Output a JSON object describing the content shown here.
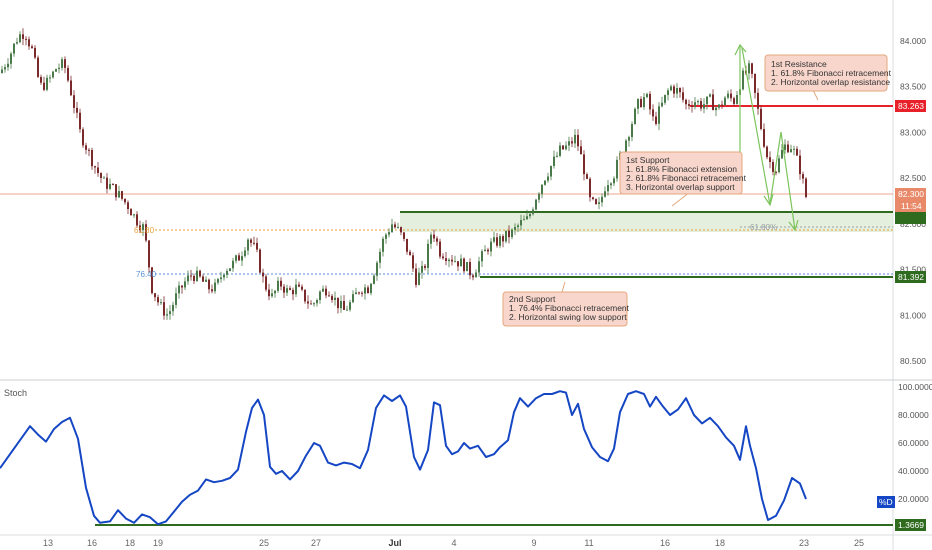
{
  "price_axis_ticks": [
    "84.000",
    "83.500",
    "83.000",
    "82.500",
    "82.000",
    "81.500",
    "81.000",
    "80.500"
  ],
  "price_axis_tick_values": [
    84.0,
    83.5,
    83.0,
    82.5,
    82.0,
    81.5,
    81.0,
    80.5
  ],
  "stoch_axis_ticks": [
    "100.0000",
    "80.0000",
    "60.0000",
    "40.0000",
    "20.0000"
  ],
  "stoch_axis_tick_values": [
    100,
    80,
    60,
    40,
    20
  ],
  "date_ticks": [
    "13",
    "16",
    "18",
    "19",
    "25",
    "27",
    "Jul",
    "4",
    "9",
    "11",
    "16",
    "18",
    "23",
    "25"
  ],
  "stoch_label": "Stoch",
  "stoch_series_label": "%D",
  "price_badges": {
    "resistance": "83.263",
    "last_price": "82.300",
    "countdown": "11:54",
    "support2": "81.392",
    "stoch_min": "1.3669"
  },
  "fib_labels": {
    "fib618_left": "61.80",
    "fib764_left": "76.40",
    "fib618_right": "61.80%"
  },
  "annotations": {
    "resistance": [
      "1st Resistance",
      "1. 61.8% Fibonacci retracement",
      "2. Horizontal overlap resistance"
    ],
    "support1": [
      "1st Support",
      "1. 61.8% Fibonacci extension",
      "2. 61.8% Fibonacci retracement",
      "3. Horizontal overlap support"
    ],
    "support2": [
      "2nd Support",
      "1. 76.4% Fibonacci retracement",
      "2. Horizontal swing low support"
    ]
  },
  "colors": {
    "candle_up": "#4a7a4a",
    "candle_down": "#7a2a2a",
    "stoch_line": "#1546c4",
    "resistance_line": "#e8202a",
    "support_line": "#2e6b1e",
    "support_zone": "#dcead2",
    "fib_618": "#e8a23a",
    "fib_764": "#5b8fd4",
    "last_price_line": "#e88a6a",
    "arrow": "#7cc45c",
    "annotation_bg": "#f8d6cc",
    "annotation_border": "#e4a87e"
  },
  "chart_data": [
    {
      "type": "candlestick",
      "title": "",
      "y_range": [
        80.3,
        84.2
      ],
      "x_ticks": [
        "13",
        "16",
        "18",
        "19",
        "25",
        "27",
        "Jul",
        "4",
        "9",
        "11",
        "16",
        "18",
        "23",
        "25"
      ],
      "close_path": [
        [
          0,
          83.65
        ],
        [
          10,
          83.85
        ],
        [
          18,
          84.05
        ],
        [
          25,
          84.1
        ],
        [
          32,
          83.9
        ],
        [
          40,
          83.5
        ],
        [
          48,
          83.55
        ],
        [
          56,
          83.7
        ],
        [
          64,
          83.75
        ],
        [
          72,
          83.4
        ],
        [
          80,
          83.0
        ],
        [
          88,
          82.8
        ],
        [
          96,
          82.6
        ],
        [
          104,
          82.45
        ],
        [
          112,
          82.4
        ],
        [
          120,
          82.3
        ],
        [
          128,
          82.2
        ],
        [
          136,
          82.05
        ],
        [
          144,
          81.95
        ],
        [
          152,
          81.3
        ],
        [
          160,
          81.1
        ],
        [
          168,
          81.0
        ],
        [
          176,
          81.2
        ],
        [
          184,
          81.35
        ],
        [
          192,
          81.45
        ],
        [
          200,
          81.4
        ],
        [
          208,
          81.3
        ],
        [
          216,
          81.3
        ],
        [
          224,
          81.5
        ],
        [
          232,
          81.55
        ],
        [
          240,
          81.65
        ],
        [
          248,
          81.85
        ],
        [
          256,
          81.7
        ],
        [
          264,
          81.35
        ],
        [
          272,
          81.2
        ],
        [
          280,
          81.35
        ],
        [
          288,
          81.25
        ],
        [
          296,
          81.3
        ],
        [
          304,
          81.2
        ],
        [
          312,
          81.1
        ],
        [
          320,
          81.25
        ],
        [
          328,
          81.3
        ],
        [
          336,
          81.15
        ],
        [
          344,
          81.05
        ],
        [
          352,
          81.15
        ],
        [
          360,
          81.3
        ],
        [
          368,
          81.3
        ],
        [
          376,
          81.55
        ],
        [
          384,
          81.85
        ],
        [
          392,
          82.0
        ],
        [
          400,
          81.9
        ],
        [
          408,
          81.7
        ],
        [
          416,
          81.4
        ],
        [
          424,
          81.5
        ],
        [
          432,
          81.95
        ],
        [
          440,
          81.7
        ],
        [
          448,
          81.65
        ],
        [
          456,
          81.6
        ],
        [
          464,
          81.55
        ],
        [
          472,
          81.45
        ],
        [
          480,
          81.6
        ],
        [
          488,
          81.75
        ],
        [
          496,
          81.8
        ],
        [
          504,
          81.85
        ],
        [
          512,
          81.9
        ],
        [
          520,
          82.0
        ],
        [
          528,
          82.05
        ],
        [
          536,
          82.3
        ],
        [
          544,
          82.5
        ],
        [
          552,
          82.65
        ],
        [
          560,
          82.8
        ],
        [
          568,
          82.85
        ],
        [
          576,
          82.95
        ],
        [
          584,
          82.6
        ],
        [
          590,
          82.25
        ],
        [
          598,
          82.15
        ],
        [
          606,
          82.45
        ],
        [
          614,
          82.55
        ],
        [
          622,
          82.8
        ],
        [
          630,
          83.05
        ],
        [
          638,
          83.3
        ],
        [
          646,
          83.4
        ],
        [
          654,
          83.1
        ],
        [
          662,
          83.3
        ],
        [
          670,
          83.5
        ],
        [
          678,
          83.45
        ],
        [
          686,
          83.3
        ],
        [
          694,
          83.35
        ],
        [
          702,
          83.3
        ],
        [
          710,
          83.35
        ],
        [
          718,
          83.25
        ],
        [
          726,
          83.4
        ],
        [
          734,
          83.35
        ],
        [
          742,
          83.6
        ],
        [
          750,
          83.7
        ],
        [
          756,
          83.35
        ],
        [
          762,
          83.0
        ],
        [
          768,
          82.7
        ],
        [
          776,
          82.6
        ],
        [
          784,
          82.85
        ],
        [
          792,
          82.85
        ],
        [
          800,
          82.6
        ],
        [
          806,
          82.3
        ]
      ]
    },
    {
      "type": "line",
      "title": "",
      "y_range": [
        0,
        100
      ],
      "series": [
        {
          "name": "%D",
          "points": [
            [
              0,
              42
            ],
            [
              10,
              52
            ],
            [
              20,
              62
            ],
            [
              30,
              72
            ],
            [
              38,
              66
            ],
            [
              46,
              61
            ],
            [
              54,
              70
            ],
            [
              62,
              75
            ],
            [
              70,
              78
            ],
            [
              78,
              63
            ],
            [
              86,
              28
            ],
            [
              94,
              8
            ],
            [
              100,
              3
            ],
            [
              110,
              4
            ],
            [
              118,
              12
            ],
            [
              126,
              6
            ],
            [
              134,
              3
            ],
            [
              142,
              9
            ],
            [
              150,
              7
            ],
            [
              158,
              2
            ],
            [
              166,
              4
            ],
            [
              174,
              11
            ],
            [
              182,
              18
            ],
            [
              190,
              23
            ],
            [
              198,
              26
            ],
            [
              206,
              34
            ],
            [
              214,
              32
            ],
            [
              222,
              33
            ],
            [
              230,
              35
            ],
            [
              238,
              41
            ],
            [
              246,
              68
            ],
            [
              252,
              85
            ],
            [
              258,
              91
            ],
            [
              264,
              80
            ],
            [
              270,
              43
            ],
            [
              276,
              38
            ],
            [
              282,
              40
            ],
            [
              290,
              34
            ],
            [
              298,
              40
            ],
            [
              306,
              51
            ],
            [
              314,
              60
            ],
            [
              320,
              58
            ],
            [
              328,
              46
            ],
            [
              336,
              44
            ],
            [
              344,
              46
            ],
            [
              352,
              45
            ],
            [
              360,
              42
            ],
            [
              368,
              55
            ],
            [
              376,
              85
            ],
            [
              384,
              94
            ],
            [
              392,
              90
            ],
            [
              400,
              94
            ],
            [
              406,
              86
            ],
            [
              414,
              50
            ],
            [
              420,
              41
            ],
            [
              428,
              55
            ],
            [
              434,
              89
            ],
            [
              440,
              87
            ],
            [
              446,
              58
            ],
            [
              452,
              52
            ],
            [
              458,
              54
            ],
            [
              464,
              60
            ],
            [
              470,
              56
            ],
            [
              478,
              58
            ],
            [
              486,
              50
            ],
            [
              494,
              52
            ],
            [
              500,
              57
            ],
            [
              508,
              62
            ],
            [
              514,
              82
            ],
            [
              520,
              92
            ],
            [
              528,
              86
            ],
            [
              536,
              92
            ],
            [
              544,
              95
            ],
            [
              552,
              95
            ],
            [
              560,
              97
            ],
            [
              566,
              96
            ],
            [
              572,
              80
            ],
            [
              578,
              88
            ],
            [
              584,
              70
            ],
            [
              592,
              57
            ],
            [
              600,
              50
            ],
            [
              608,
              47
            ],
            [
              614,
              56
            ],
            [
              620,
              82
            ],
            [
              628,
              95
            ],
            [
              636,
              97
            ],
            [
              644,
              95
            ],
            [
              650,
              86
            ],
            [
              656,
              93
            ],
            [
              662,
              87
            ],
            [
              670,
              80
            ],
            [
              678,
              84
            ],
            [
              686,
              92
            ],
            [
              694,
              80
            ],
            [
              702,
              74
            ],
            [
              710,
              78
            ],
            [
              718,
              72
            ],
            [
              726,
              64
            ],
            [
              734,
              58
            ],
            [
              740,
              48
            ],
            [
              746,
              72
            ],
            [
              750,
              58
            ],
            [
              756,
              42
            ],
            [
              762,
              20
            ],
            [
              768,
              5
            ],
            [
              776,
              8
            ],
            [
              784,
              19
            ],
            [
              792,
              35
            ],
            [
              800,
              31
            ],
            [
              806,
              20
            ]
          ]
        }
      ]
    }
  ]
}
